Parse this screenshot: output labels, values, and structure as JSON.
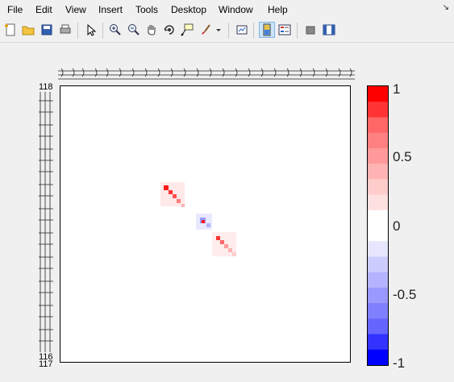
{
  "menu": {
    "items": [
      "File",
      "Edit",
      "View",
      "Insert",
      "Tools",
      "Desktop",
      "Window",
      "Help"
    ]
  },
  "toolbar": {
    "icons": [
      "new-figure-icon",
      "open-file-icon",
      "save-icon",
      "print-icon",
      "select-arrow-icon",
      "zoom-in-icon",
      "zoom-out-icon",
      "pan-hand-icon",
      "rotate-3d-icon",
      "data-cursor-icon",
      "brush-icon",
      "brush-dropdown-icon",
      "link-plot-icon",
      "colorbar-icon",
      "legend-icon",
      "hide-plot-tools-icon",
      "show-plot-tools-icon"
    ]
  },
  "colorbar": {
    "tick_labels": [
      "1",
      "0.5",
      "0",
      "-0.5",
      "-1"
    ],
    "colors": [
      "#ff0000",
      "#ff3333",
      "#ff6666",
      "#ff8080",
      "#ff9999",
      "#ffb3b3",
      "#ffcccc",
      "#ffe0e0",
      "#ffffff",
      "#ffffff",
      "#e6e6ff",
      "#ccccff",
      "#b3b3ff",
      "#9999ff",
      "#8080ff",
      "#6666ff",
      "#3333ff",
      "#0000ff"
    ]
  },
  "chart_data": {
    "type": "heatmap",
    "clim": [
      -1,
      1
    ],
    "colormap": "red-white-blue",
    "visible_axis_labels": [
      "118",
      "116",
      "117"
    ],
    "note_cells": [
      {
        "value": 0.9
      },
      {
        "value": 0.8
      },
      {
        "value": 0.7
      },
      {
        "value": 0.5
      },
      {
        "value": 0.3
      },
      {
        "value": -0.4
      },
      {
        "value": 0.9
      },
      {
        "value": -0.3
      },
      {
        "value": 0.8
      },
      {
        "value": 0.6
      },
      {
        "value": 0.4
      },
      {
        "value": 0.3
      },
      {
        "value": 0.2
      }
    ]
  }
}
